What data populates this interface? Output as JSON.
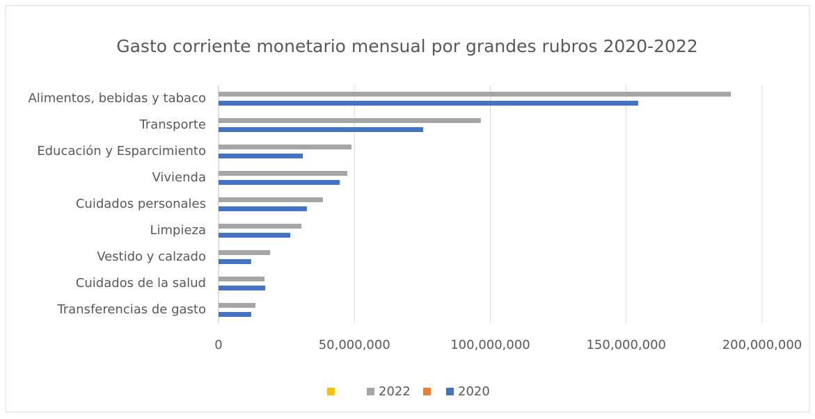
{
  "chart_data": {
    "type": "bar",
    "orientation": "horizontal",
    "title": "Gasto corriente monetario mensual por grandes rubros 2020-2022",
    "categories": [
      "Alimentos, bebidas y tabaco",
      "Transporte",
      "Educación y Esparcimiento",
      "Vivienda",
      "Cuidados personales",
      "Limpieza",
      "Vestido y calzado",
      "Cuidados de la salud",
      "Transferencias de gasto"
    ],
    "series": [
      {
        "name": null,
        "color": "#ffc000",
        "values": [
          null,
          null,
          null,
          null,
          null,
          null,
          null,
          null,
          null
        ]
      },
      {
        "name": "2022",
        "color": "#a5a5a5",
        "values": [
          188500000,
          96500000,
          48900000,
          47400000,
          38400000,
          30500000,
          19000000,
          16900000,
          13600000
        ]
      },
      {
        "name": null,
        "color": "#ed7d31",
        "values": [
          null,
          null,
          null,
          null,
          null,
          null,
          null,
          null,
          null
        ]
      },
      {
        "name": "2020",
        "color": "#4472c4",
        "values": [
          154400000,
          75300000,
          31000000,
          44600000,
          32500000,
          26400000,
          12000000,
          17200000,
          12000000
        ]
      }
    ],
    "xlim": [
      0,
      200000000
    ],
    "xticks": [
      0,
      {
        "value": 50000000,
        "label": "50,000,000"
      },
      {
        "value": 100000000,
        "label": "100,000,000"
      },
      {
        "value": 150000000,
        "label": "150,000,000"
      },
      {
        "value": 200000000,
        "label": "200,000,000"
      }
    ],
    "grid": true,
    "legend": "bottom"
  }
}
